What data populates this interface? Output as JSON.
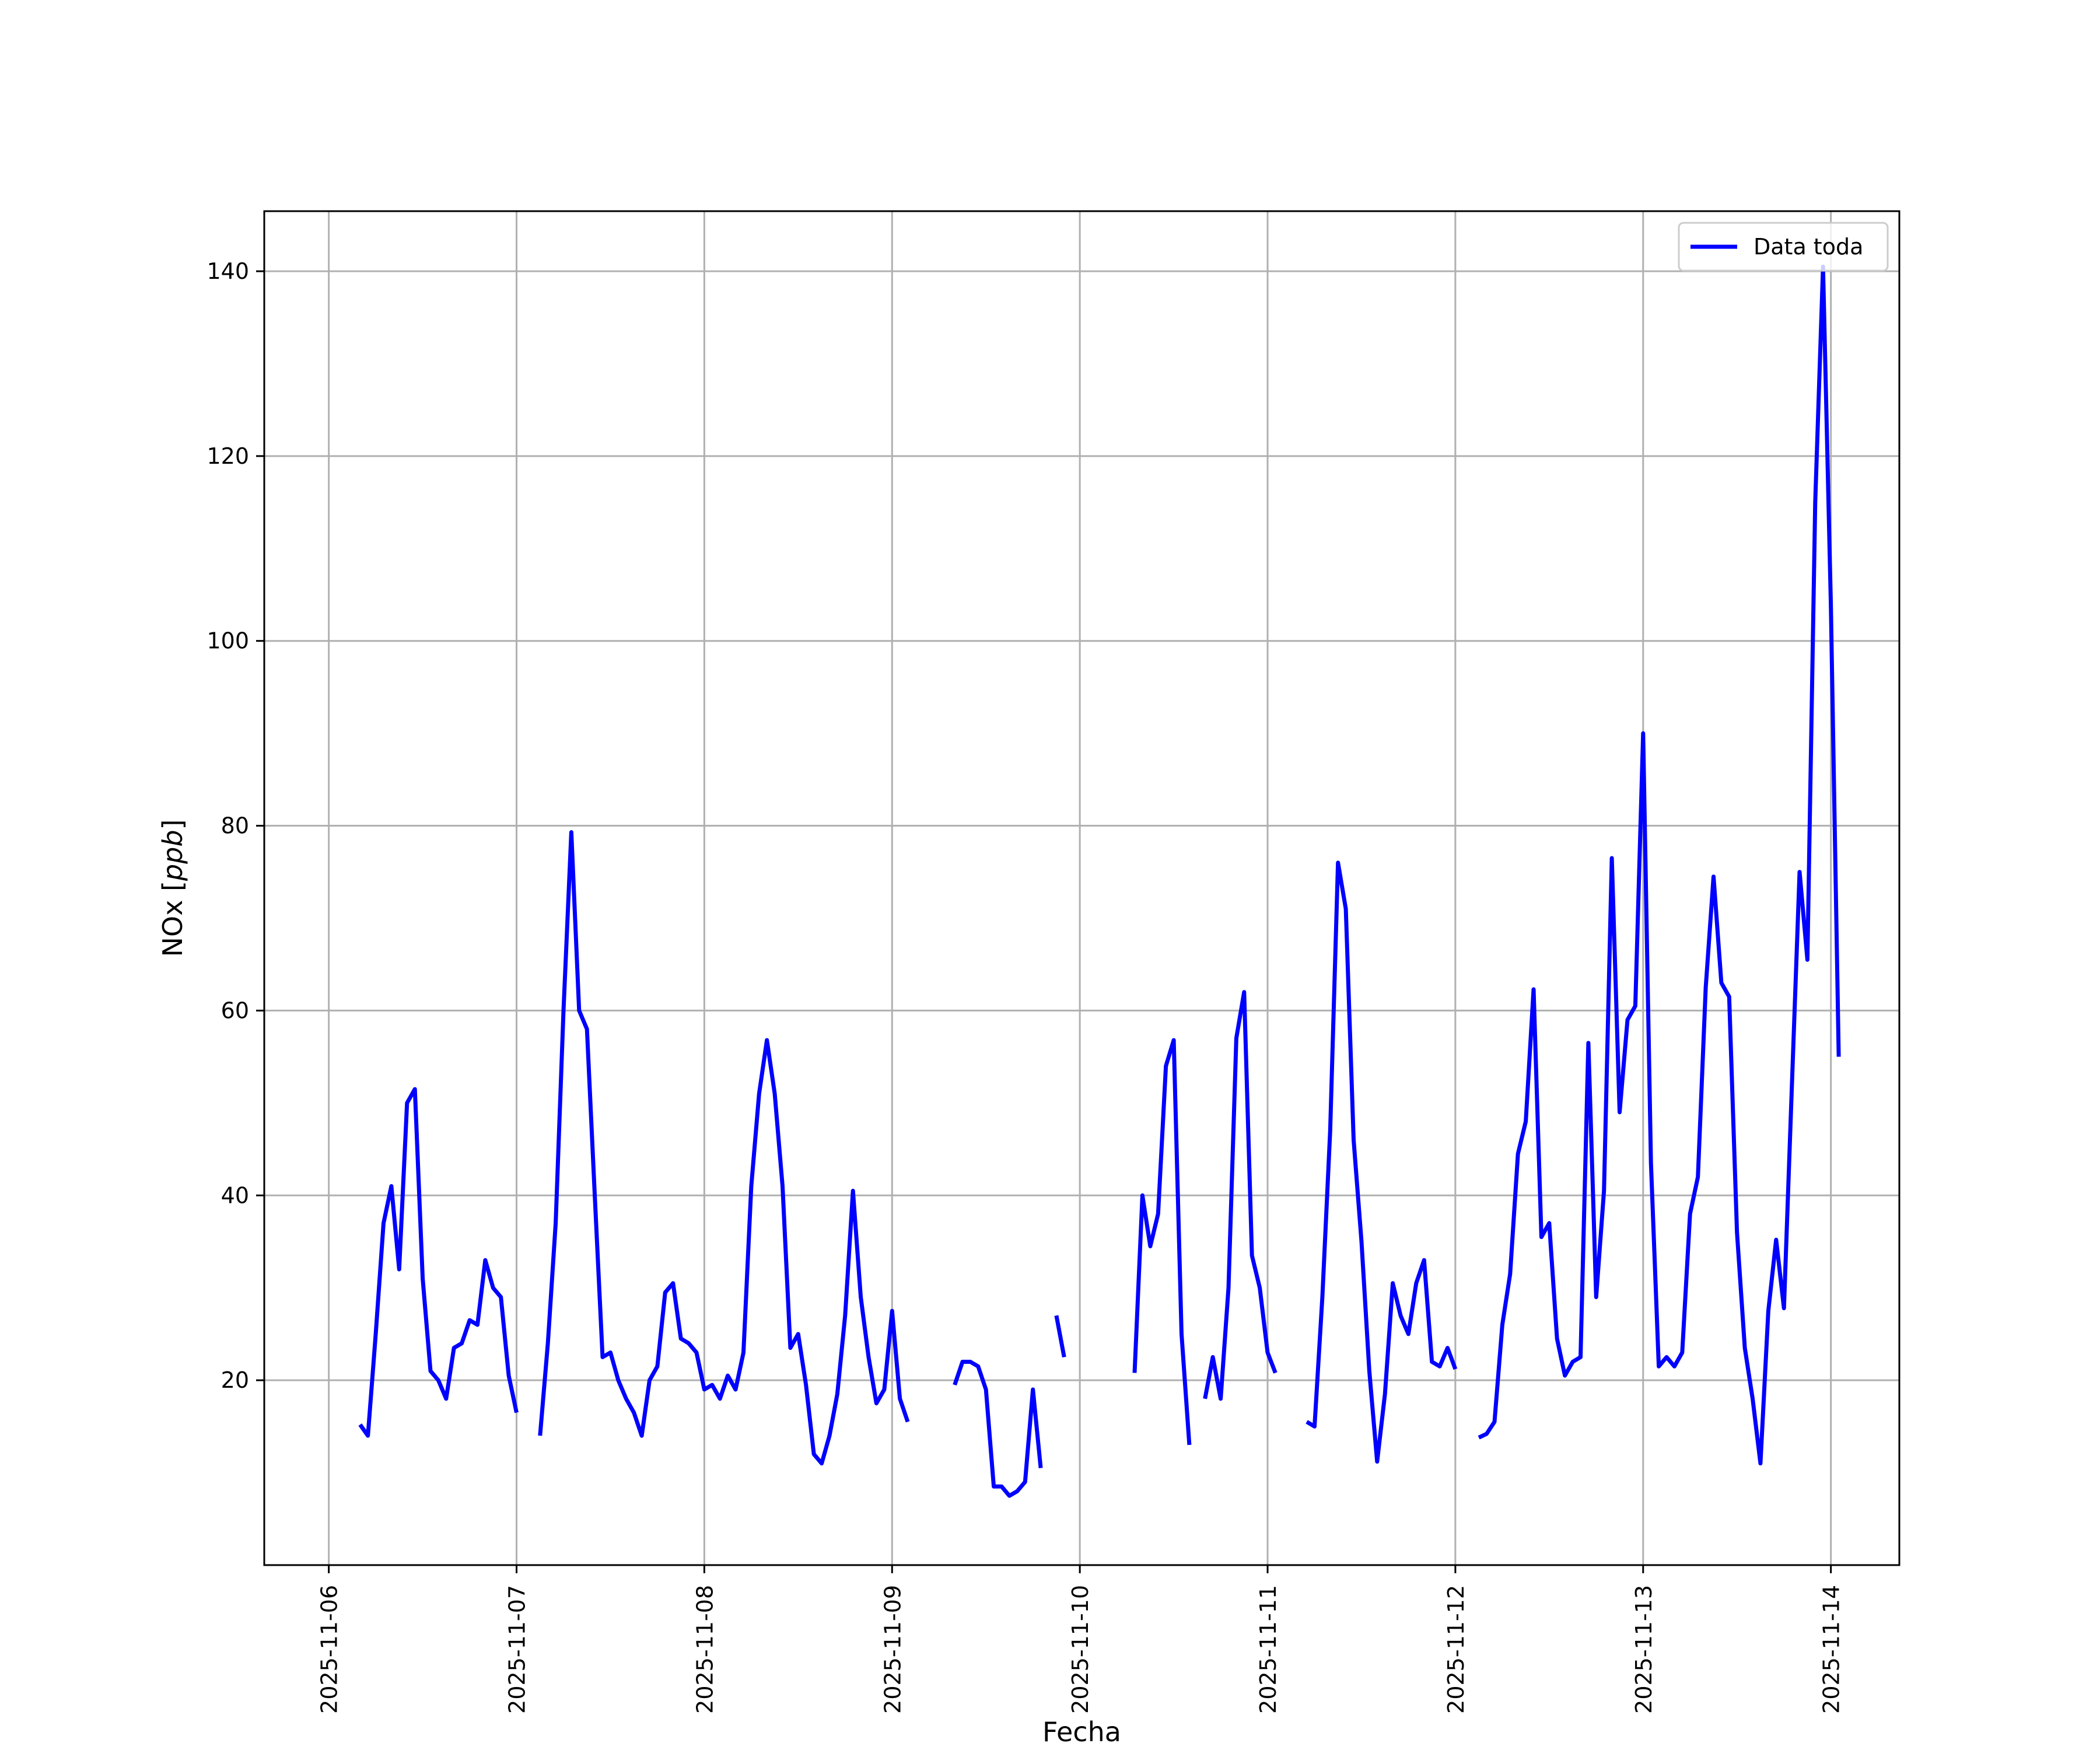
{
  "chart_data": {
    "type": "line",
    "title": "",
    "xlabel": "Fecha",
    "ylabel": "NOx [ppb]",
    "ylabel_unit": "ppb",
    "ylabel_base": "NOx",
    "xlim": [
      "2025-11-05T15:45",
      "2025-11-14T08:45"
    ],
    "ylim": [
      0,
      146.5
    ],
    "x_ticks": [
      "2025-11-06",
      "2025-11-07",
      "2025-11-08",
      "2025-11-09",
      "2025-11-10",
      "2025-11-11",
      "2025-11-12",
      "2025-11-13",
      "2025-11-14"
    ],
    "y_ticks": [
      20,
      40,
      60,
      80,
      100,
      120,
      140
    ],
    "grid": true,
    "legend_position": "upper right",
    "series": [
      {
        "name": "Data toda",
        "color": "#0000ff",
        "segments": [
          [
            [
              "2025-11-06T04:00",
              15.2
            ],
            [
              "2025-11-06T05:00",
              14.0
            ],
            [
              "2025-11-06T06:00",
              25.0
            ],
            [
              "2025-11-06T07:00",
              37.0
            ],
            [
              "2025-11-06T08:00",
              41.0
            ],
            [
              "2025-11-06T09:00",
              32.0
            ],
            [
              "2025-11-06T10:00",
              50.0
            ],
            [
              "2025-11-06T11:00",
              51.5
            ],
            [
              "2025-11-06T12:00",
              31.0
            ],
            [
              "2025-11-06T13:00",
              21.0
            ],
            [
              "2025-11-06T14:00",
              20.0
            ],
            [
              "2025-11-06T15:00",
              18.0
            ],
            [
              "2025-11-06T16:00",
              23.5
            ],
            [
              "2025-11-06T17:00",
              24.0
            ],
            [
              "2025-11-06T18:00",
              26.5
            ],
            [
              "2025-11-06T19:00",
              26.0
            ],
            [
              "2025-11-06T20:00",
              33.0
            ],
            [
              "2025-11-06T21:00",
              30.0
            ],
            [
              "2025-11-06T22:00",
              29.0
            ],
            [
              "2025-11-06T23:00",
              20.5
            ],
            [
              "2025-11-07T00:00",
              16.5
            ]
          ],
          [
            [
              "2025-11-07T03:00",
              14.0
            ],
            [
              "2025-11-07T04:00",
              24.0
            ],
            [
              "2025-11-07T05:00",
              37.0
            ],
            [
              "2025-11-07T06:00",
              60.0
            ],
            [
              "2025-11-07T07:00",
              79.3
            ],
            [
              "2025-11-07T08:00",
              60.0
            ],
            [
              "2025-11-07T09:00",
              58.0
            ],
            [
              "2025-11-07T10:00",
              40.0
            ],
            [
              "2025-11-07T11:00",
              22.5
            ],
            [
              "2025-11-07T12:00",
              23.0
            ],
            [
              "2025-11-07T13:00",
              20.0
            ],
            [
              "2025-11-07T14:00",
              18.0
            ],
            [
              "2025-11-07T15:00",
              16.5
            ],
            [
              "2025-11-07T16:00",
              14.0
            ],
            [
              "2025-11-07T17:00",
              20.0
            ],
            [
              "2025-11-07T18:00",
              21.5
            ],
            [
              "2025-11-07T19:00",
              29.5
            ],
            [
              "2025-11-07T20:00",
              30.5
            ],
            [
              "2025-11-07T21:00",
              24.5
            ],
            [
              "2025-11-07T22:00",
              24.0
            ],
            [
              "2025-11-07T23:00",
              23.0
            ],
            [
              "2025-11-08T00:00",
              19.0
            ],
            [
              "2025-11-08T01:00",
              19.5
            ],
            [
              "2025-11-08T02:00",
              18.0
            ],
            [
              "2025-11-08T03:00",
              20.5
            ],
            [
              "2025-11-08T04:00",
              19.0
            ],
            [
              "2025-11-08T05:00",
              23.0
            ],
            [
              "2025-11-08T06:00",
              41.0
            ],
            [
              "2025-11-08T07:00",
              51.0
            ],
            [
              "2025-11-08T08:00",
              56.8
            ],
            [
              "2025-11-08T09:00",
              51.0
            ],
            [
              "2025-11-08T10:00",
              41.0
            ],
            [
              "2025-11-08T11:00",
              23.5
            ],
            [
              "2025-11-08T12:00",
              25.0
            ],
            [
              "2025-11-08T13:00",
              19.5
            ],
            [
              "2025-11-08T14:00",
              12.0
            ],
            [
              "2025-11-08T15:00",
              11.0
            ],
            [
              "2025-11-08T16:00",
              14.0
            ],
            [
              "2025-11-08T17:00",
              18.5
            ],
            [
              "2025-11-08T18:00",
              27.0
            ],
            [
              "2025-11-08T19:00",
              40.5
            ],
            [
              "2025-11-08T20:00",
              29.0
            ],
            [
              "2025-11-08T21:00",
              22.5
            ],
            [
              "2025-11-08T22:00",
              17.5
            ],
            [
              "2025-11-08T23:00",
              19.0
            ],
            [
              "2025-11-09T00:00",
              27.5
            ],
            [
              "2025-11-09T01:00",
              18.0
            ],
            [
              "2025-11-09T02:00",
              15.5
            ]
          ],
          [
            [
              "2025-11-09T08:00",
              19.5
            ],
            [
              "2025-11-09T09:00",
              22.0
            ],
            [
              "2025-11-09T10:00",
              22.0
            ],
            [
              "2025-11-09T11:00",
              21.5
            ],
            [
              "2025-11-09T12:00",
              19.0
            ],
            [
              "2025-11-09T13:00",
              8.5
            ],
            [
              "2025-11-09T14:00",
              8.5
            ],
            [
              "2025-11-09T15:00",
              7.5
            ],
            [
              "2025-11-09T16:00",
              8.0
            ],
            [
              "2025-11-09T17:00",
              9.0
            ],
            [
              "2025-11-09T18:00",
              19.0
            ],
            [
              "2025-11-09T19:00",
              10.5
            ]
          ],
          [
            [
              "2025-11-09T21:00",
              27.0
            ],
            [
              "2025-11-09T22:00",
              22.5
            ]
          ],
          [
            [
              "2025-11-10T07:00",
              20.8
            ],
            [
              "2025-11-10T08:00",
              40.0
            ],
            [
              "2025-11-10T09:00",
              34.5
            ],
            [
              "2025-11-10T10:00",
              38.0
            ],
            [
              "2025-11-10T11:00",
              54.0
            ],
            [
              "2025-11-10T12:00",
              56.8
            ],
            [
              "2025-11-10T13:00",
              25.0
            ],
            [
              "2025-11-10T14:00",
              13.0
            ]
          ],
          [
            [
              "2025-11-10T16:00",
              18.0
            ],
            [
              "2025-11-10T17:00",
              22.5
            ],
            [
              "2025-11-10T18:00",
              18.0
            ],
            [
              "2025-11-10T19:00",
              30.0
            ],
            [
              "2025-11-10T20:00",
              57.0
            ],
            [
              "2025-11-10T21:00",
              62.0
            ],
            [
              "2025-11-10T22:00",
              33.5
            ],
            [
              "2025-11-10T23:00",
              30.0
            ],
            [
              "2025-11-11T00:00",
              23.0
            ],
            [
              "2025-11-11T01:00",
              20.8
            ]
          ],
          [
            [
              "2025-11-11T05:00",
              15.5
            ],
            [
              "2025-11-11T06:00",
              15.0
            ],
            [
              "2025-11-11T07:00",
              29.0
            ],
            [
              "2025-11-11T08:00",
              47.0
            ],
            [
              "2025-11-11T09:00",
              76.0
            ],
            [
              "2025-11-11T10:00",
              71.0
            ],
            [
              "2025-11-11T11:00",
              46.0
            ],
            [
              "2025-11-11T12:00",
              35.0
            ],
            [
              "2025-11-11T13:00",
              21.0
            ],
            [
              "2025-11-11T14:00",
              11.2
            ],
            [
              "2025-11-11T15:00",
              18.5
            ],
            [
              "2025-11-11T16:00",
              30.5
            ],
            [
              "2025-11-11T17:00",
              27.0
            ],
            [
              "2025-11-11T18:00",
              25.0
            ],
            [
              "2025-11-11T19:00",
              30.5
            ],
            [
              "2025-11-11T20:00",
              33.0
            ],
            [
              "2025-11-11T21:00",
              22.0
            ],
            [
              "2025-11-11T22:00",
              21.5
            ],
            [
              "2025-11-11T23:00",
              23.5
            ],
            [
              "2025-11-12T00:00",
              21.2
            ]
          ],
          [
            [
              "2025-11-12T03:00",
              13.8
            ],
            [
              "2025-11-12T04:00",
              14.2
            ],
            [
              "2025-11-12T05:00",
              15.5
            ],
            [
              "2025-11-12T06:00",
              26.0
            ],
            [
              "2025-11-12T07:00",
              31.5
            ],
            [
              "2025-11-12T08:00",
              44.5
            ],
            [
              "2025-11-12T09:00",
              48.0
            ],
            [
              "2025-11-12T10:00",
              62.3
            ],
            [
              "2025-11-12T11:00",
              35.5
            ],
            [
              "2025-11-12T12:00",
              37.0
            ],
            [
              "2025-11-12T13:00",
              24.5
            ],
            [
              "2025-11-12T14:00",
              20.5
            ],
            [
              "2025-11-12T15:00",
              22.0
            ],
            [
              "2025-11-12T16:00",
              22.5
            ],
            [
              "2025-11-12T17:00",
              56.5
            ],
            [
              "2025-11-12T18:00",
              29.0
            ],
            [
              "2025-11-12T19:00",
              40.5
            ],
            [
              "2025-11-12T20:00",
              76.5
            ],
            [
              "2025-11-12T21:00",
              49.0
            ],
            [
              "2025-11-12T22:00",
              59.0
            ],
            [
              "2025-11-12T23:00",
              60.5
            ],
            [
              "2025-11-13T00:00",
              90.0
            ],
            [
              "2025-11-13T01:00",
              43.5
            ],
            [
              "2025-11-13T02:00",
              21.5
            ],
            [
              "2025-11-13T03:00",
              22.5
            ],
            [
              "2025-11-13T04:00",
              21.5
            ],
            [
              "2025-11-13T05:00",
              23.0
            ],
            [
              "2025-11-13T06:00",
              38.0
            ],
            [
              "2025-11-13T07:00",
              42.0
            ],
            [
              "2025-11-13T08:00",
              62.5
            ],
            [
              "2025-11-13T09:00",
              74.5
            ],
            [
              "2025-11-13T10:00",
              63.0
            ],
            [
              "2025-11-13T11:00",
              61.5
            ],
            [
              "2025-11-13T12:00",
              36.0
            ],
            [
              "2025-11-13T13:00",
              23.5
            ],
            [
              "2025-11-13T14:00",
              18.0
            ],
            [
              "2025-11-13T15:00",
              11.0
            ],
            [
              "2025-11-13T16:00",
              27.5
            ],
            [
              "2025-11-13T17:00",
              35.2
            ],
            [
              "2025-11-13T18:00",
              27.8
            ],
            [
              "2025-11-13T19:00",
              51.5
            ],
            [
              "2025-11-13T20:00",
              75.0
            ],
            [
              "2025-11-13T21:00",
              65.5
            ],
            [
              "2025-11-13T22:00",
              115.0
            ],
            [
              "2025-11-13T23:00",
              140.5
            ],
            [
              "2025-11-14T00:00",
              104.0
            ],
            [
              "2025-11-14T01:00",
              55.0
            ]
          ]
        ]
      }
    ]
  }
}
